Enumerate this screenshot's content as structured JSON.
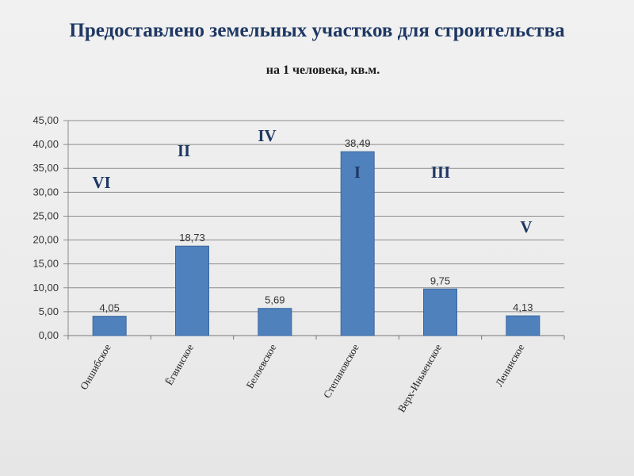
{
  "header": {
    "title": "Предоставлено земельных  участков для строительства",
    "subtitle": "на 1 человека, кв.м."
  },
  "colors": {
    "bar": "#4f81bd",
    "bar_edge": "#3a689f",
    "title": "#1f3864",
    "grid": "#8c8c8c"
  },
  "chart_data": {
    "type": "bar",
    "title": "Предоставлено земельных  участков для строительства",
    "subtitle": "на 1 человека, кв.м.",
    "categories": [
      "Оншибское",
      "Ёгвинское",
      "Белоевское",
      "Степановское",
      "Верх-Иньвенское",
      "Ленинское"
    ],
    "values": [
      4.05,
      18.73,
      5.69,
      38.49,
      9.75,
      4.13
    ],
    "data_labels": [
      "4,05",
      "18,73",
      "5,69",
      "38,49",
      "9,75",
      "4,13"
    ],
    "rank_labels": [
      "VI",
      "II",
      "IV",
      "I",
      "III",
      "V"
    ],
    "ylim": [
      0,
      45
    ],
    "yticks": [
      0,
      5,
      10,
      15,
      20,
      25,
      30,
      35,
      40,
      45
    ],
    "ytick_labels": [
      "0,00",
      "5,00",
      "10,00",
      "15,00",
      "20,00",
      "25,00",
      "30,00",
      "35,00",
      "40,00",
      "45,00"
    ],
    "xlabel": "",
    "ylabel": "",
    "grid": true,
    "legend": "none"
  }
}
